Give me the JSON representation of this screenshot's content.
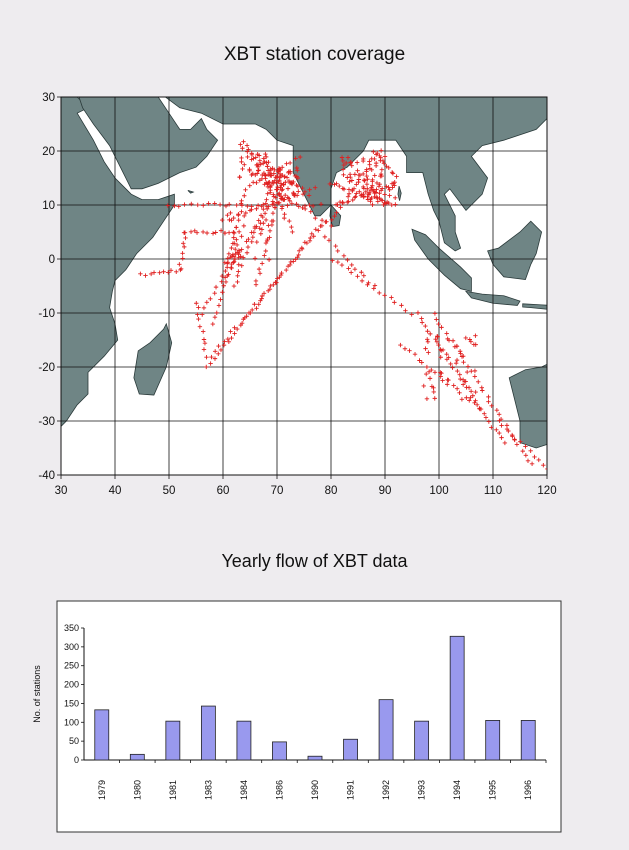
{
  "map": {
    "title": "XBT  station coverage",
    "land_color": "#6f8585",
    "station_color": "#e02020"
  },
  "bars": {
    "title": "Yearly flow of XBT data",
    "bar_color": "#9999ee"
  },
  "chart_data": [
    {
      "type": "scatter",
      "title": "XBT  station coverage",
      "xlabel": "",
      "ylabel": "",
      "xlim": [
        30,
        120
      ],
      "ylim": [
        -40,
        30
      ],
      "xticks": [
        30,
        40,
        50,
        60,
        70,
        80,
        90,
        100,
        110,
        120
      ],
      "yticks": [
        30,
        20,
        10,
        0,
        -10,
        -20,
        -30,
        -40
      ],
      "grid": true,
      "marker": "+",
      "tracks": [
        {
          "from": [
            45,
            -3
          ],
          "to": [
            52,
            -2
          ],
          "n": 10
        },
        {
          "from": [
            52,
            -2
          ],
          "to": [
            53,
            5
          ],
          "n": 8
        },
        {
          "from": [
            53,
            5
          ],
          "to": [
            62,
            5
          ],
          "n": 12
        },
        {
          "from": [
            57,
            -20
          ],
          "to": [
            78,
            6
          ],
          "n": 34
        },
        {
          "from": [
            58,
            -18
          ],
          "to": [
            79,
            7
          ],
          "n": 30
        },
        {
          "from": [
            56,
            -10
          ],
          "to": [
            72,
            15
          ],
          "n": 28
        },
        {
          "from": [
            62,
            -5
          ],
          "to": [
            70,
            16
          ],
          "n": 22
        },
        {
          "from": [
            60,
            -3
          ],
          "to": [
            64,
            12
          ],
          "n": 16
        },
        {
          "from": [
            66,
            -5
          ],
          "to": [
            71,
            14
          ],
          "n": 18
        },
        {
          "from": [
            58,
            -12
          ],
          "to": [
            63,
            5
          ],
          "n": 16
        },
        {
          "from": [
            50,
            10
          ],
          "to": [
            78,
            10
          ],
          "n": 28
        },
        {
          "from": [
            60,
            7
          ],
          "to": [
            77,
            13
          ],
          "n": 18
        },
        {
          "from": [
            63,
            21
          ],
          "to": [
            76,
            12
          ],
          "n": 18
        },
        {
          "from": [
            64,
            22
          ],
          "to": [
            73,
            5
          ],
          "n": 20
        },
        {
          "from": [
            64,
            13
          ],
          "to": [
            74,
            19
          ],
          "n": 14
        },
        {
          "from": [
            80,
            7
          ],
          "to": [
            89,
            20
          ],
          "n": 16
        },
        {
          "from": [
            81,
            10
          ],
          "to": [
            92,
            14
          ],
          "n": 24
        },
        {
          "from": [
            80,
            14
          ],
          "to": [
            92,
            10
          ],
          "n": 24
        },
        {
          "from": [
            88,
            20
          ],
          "to": [
            92,
            15
          ],
          "n": 10
        },
        {
          "from": [
            84,
            17
          ],
          "to": [
            90,
            10
          ],
          "n": 10
        },
        {
          "from": [
            80,
            0
          ],
          "to": [
            95,
            -10
          ],
          "n": 16
        },
        {
          "from": [
            79,
            4
          ],
          "to": [
            88,
            -5
          ],
          "n": 12
        },
        {
          "from": [
            96,
            -10
          ],
          "to": [
            112,
            -34
          ],
          "n": 32
        },
        {
          "from": [
            99,
            -10
          ],
          "to": [
            117,
            -38
          ],
          "n": 32
        },
        {
          "from": [
            93,
            -16
          ],
          "to": [
            108,
            -28
          ],
          "n": 20
        },
        {
          "from": [
            111,
            -30
          ],
          "to": [
            120,
            -39
          ],
          "n": 12
        },
        {
          "from": [
            55,
            -8
          ],
          "to": [
            57,
            -18
          ],
          "n": 10
        },
        {
          "from": [
            68,
            14
          ],
          "to": [
            80,
            6
          ],
          "n": 14
        }
      ],
      "clusters": [
        {
          "center": [
            71,
            14
          ],
          "spread": [
            3,
            3
          ],
          "n": 60
        },
        {
          "center": [
            66,
            17
          ],
          "spread": [
            3,
            2.5
          ],
          "n": 34
        },
        {
          "center": [
            86,
            16
          ],
          "spread": [
            4,
            3
          ],
          "n": 45
        },
        {
          "center": [
            102,
            -20
          ],
          "spread": [
            5,
            6
          ],
          "n": 45
        },
        {
          "center": [
            65,
            4
          ],
          "spread": [
            5,
            6
          ],
          "n": 38
        },
        {
          "center": [
            89,
            12
          ],
          "spread": [
            3,
            2
          ],
          "n": 20
        }
      ]
    },
    {
      "type": "bar",
      "title": "Yearly flow of XBT data",
      "xlabel": "",
      "ylabel": "No. of stations",
      "ylim": [
        0,
        350
      ],
      "yticks": [
        0,
        50,
        100,
        150,
        200,
        250,
        300,
        350
      ],
      "categories": [
        "1979",
        "1980",
        "1981",
        "1983",
        "1984",
        "1986",
        "1990",
        "1991",
        "1992",
        "1993",
        "1994",
        "1995",
        "1996"
      ],
      "values": [
        133,
        15,
        103,
        143,
        103,
        48,
        10,
        55,
        160,
        103,
        328,
        105,
        105
      ]
    }
  ]
}
